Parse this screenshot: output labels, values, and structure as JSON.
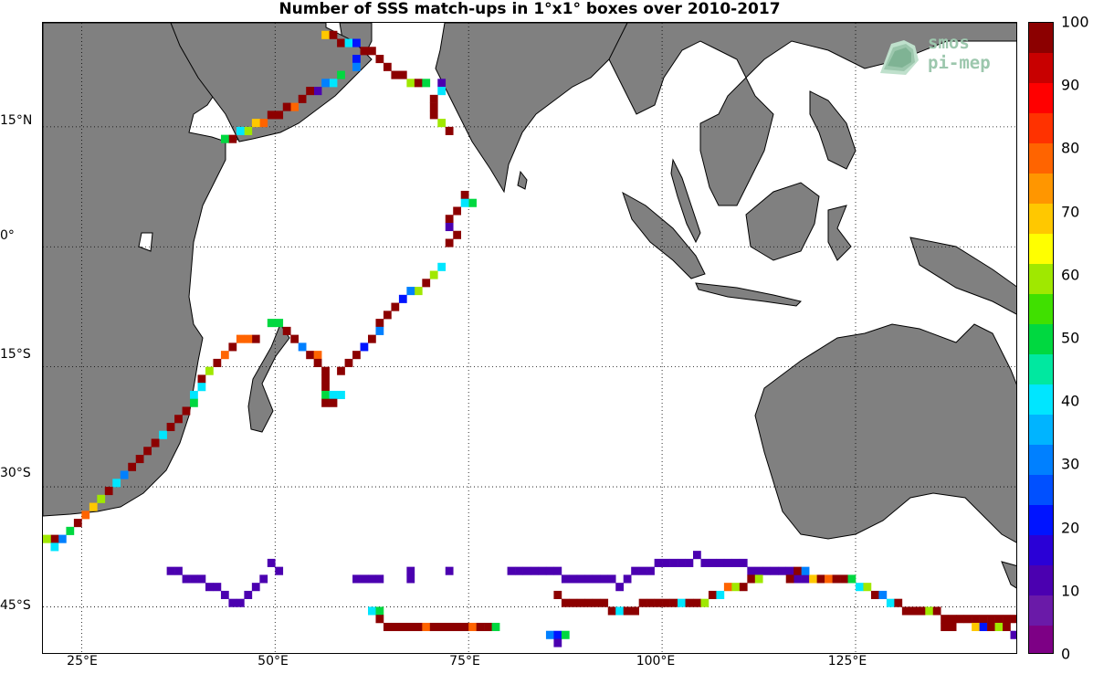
{
  "title": "Number of SSS match-ups in 1°x1° boxes over 2010-2017",
  "lat_labels": [
    "15°N",
    "0°",
    "15°S",
    "30°S",
    "45°S"
  ],
  "lon_labels": [
    "25°E",
    "50°E",
    "75°E",
    "100°E",
    "125°E"
  ],
  "colorbar": {
    "ticks": [
      "0",
      "10",
      "20",
      "30",
      "40",
      "50",
      "60",
      "70",
      "80",
      "90",
      "100"
    ],
    "colors": [
      "#7d0085",
      "#6a1aa8",
      "#4b00b0",
      "#2a00d6",
      "#0014ff",
      "#0050ff",
      "#0080ff",
      "#00b4ff",
      "#00e6ff",
      "#00e8a0",
      "#00d840",
      "#40e000",
      "#a0e800",
      "#ffff00",
      "#ffc800",
      "#ff9600",
      "#ff6400",
      "#ff3200",
      "#ff0000",
      "#c80000",
      "#8c0000"
    ]
  },
  "logo": {
    "line1": "smos",
    "line2": "pi-mep",
    "icon": "smos-pimep-logo-icon"
  },
  "chart_data": {
    "type": "map-gridded",
    "variable": "Number of SSS match-ups in 1°x1° boxes",
    "period": "2010-2017",
    "lon_range": [
      20,
      146
    ],
    "lat_range": [
      -51,
      28
    ],
    "land_color": "#808080",
    "colorbar_range": [
      0,
      100
    ],
    "cells": [
      [
        56,
        26,
        70
      ],
      [
        57,
        26,
        100
      ],
      [
        58,
        25,
        100
      ],
      [
        59,
        25,
        40
      ],
      [
        60,
        25,
        20
      ],
      [
        61,
        24,
        100
      ],
      [
        62,
        24,
        100
      ],
      [
        63,
        23,
        100
      ],
      [
        60,
        23,
        20
      ],
      [
        60,
        22,
        30
      ],
      [
        58,
        21,
        50
      ],
      [
        57,
        20,
        40
      ],
      [
        56,
        20,
        30
      ],
      [
        55,
        19,
        10
      ],
      [
        54,
        19,
        100
      ],
      [
        53,
        18,
        100
      ],
      [
        52,
        17,
        80
      ],
      [
        51,
        17,
        100
      ],
      [
        50,
        16,
        100
      ],
      [
        49,
        16,
        100
      ],
      [
        48,
        15,
        80
      ],
      [
        47,
        15,
        70
      ],
      [
        46,
        14,
        60
      ],
      [
        45,
        14,
        40
      ],
      [
        44,
        13,
        100
      ],
      [
        43,
        13,
        50
      ],
      [
        64,
        22,
        100
      ],
      [
        65,
        21,
        100
      ],
      [
        66,
        21,
        100
      ],
      [
        67,
        20,
        60
      ],
      [
        68,
        20,
        100
      ],
      [
        69,
        20,
        50
      ],
      [
        71,
        20,
        10
      ],
      [
        71,
        19,
        40
      ],
      [
        70,
        18,
        100
      ],
      [
        70,
        17,
        100
      ],
      [
        70,
        16,
        100
      ],
      [
        71,
        15,
        60
      ],
      [
        72,
        14,
        100
      ],
      [
        74,
        6,
        100
      ],
      [
        75,
        5,
        50
      ],
      [
        74,
        5,
        40
      ],
      [
        73,
        4,
        100
      ],
      [
        72,
        3,
        100
      ],
      [
        72,
        2,
        10
      ],
      [
        73,
        1,
        100
      ],
      [
        72,
        0,
        100
      ],
      [
        71,
        -3,
        40
      ],
      [
        70,
        -4,
        60
      ],
      [
        69,
        -5,
        100
      ],
      [
        68,
        -6,
        60
      ],
      [
        67,
        -6,
        30
      ],
      [
        66,
        -7,
        20
      ],
      [
        65,
        -8,
        100
      ],
      [
        64,
        -9,
        100
      ],
      [
        63,
        -10,
        100
      ],
      [
        63,
        -11,
        30
      ],
      [
        62,
        -12,
        100
      ],
      [
        61,
        -13,
        20
      ],
      [
        60,
        -14,
        100
      ],
      [
        59,
        -15,
        100
      ],
      [
        58,
        -16,
        100
      ],
      [
        49,
        -10,
        50
      ],
      [
        50,
        -10,
        50
      ],
      [
        51,
        -11,
        100
      ],
      [
        52,
        -12,
        100
      ],
      [
        53,
        -13,
        30
      ],
      [
        54,
        -14,
        100
      ],
      [
        55,
        -14,
        80
      ],
      [
        55,
        -15,
        100
      ],
      [
        56,
        -16,
        100
      ],
      [
        56,
        -17,
        100
      ],
      [
        56,
        -18,
        100
      ],
      [
        56,
        -19,
        50
      ],
      [
        57,
        -19,
        40
      ],
      [
        58,
        -19,
        40
      ],
      [
        56,
        -20,
        100
      ],
      [
        57,
        -20,
        100
      ],
      [
        47,
        -12,
        100
      ],
      [
        46,
        -12,
        80
      ],
      [
        45,
        -12,
        80
      ],
      [
        44,
        -13,
        100
      ],
      [
        43,
        -14,
        80
      ],
      [
        42,
        -15,
        100
      ],
      [
        41,
        -16,
        60
      ],
      [
        40,
        -17,
        100
      ],
      [
        40,
        -18,
        40
      ],
      [
        39,
        -19,
        40
      ],
      [
        39,
        -20,
        50
      ],
      [
        38,
        -21,
        100
      ],
      [
        37,
        -22,
        100
      ],
      [
        36,
        -23,
        100
      ],
      [
        35,
        -24,
        40
      ],
      [
        34,
        -25,
        100
      ],
      [
        33,
        -26,
        100
      ],
      [
        32,
        -27,
        100
      ],
      [
        31,
        -28,
        100
      ],
      [
        30,
        -29,
        30
      ],
      [
        29,
        -30,
        40
      ],
      [
        28,
        -31,
        100
      ],
      [
        27,
        -32,
        60
      ],
      [
        26,
        -33,
        70
      ],
      [
        25,
        -34,
        80
      ],
      [
        24,
        -35,
        100
      ],
      [
        23,
        -36,
        50
      ],
      [
        22,
        -37,
        30
      ],
      [
        21,
        -37,
        100
      ],
      [
        20,
        -37,
        60
      ],
      [
        21,
        -38,
        40
      ],
      [
        49,
        -40,
        10
      ],
      [
        50,
        -41,
        10
      ],
      [
        48,
        -42,
        10
      ],
      [
        47,
        -43,
        10
      ],
      [
        46,
        -44,
        10
      ],
      [
        45,
        -45,
        10
      ],
      [
        44,
        -45,
        10
      ],
      [
        43,
        -44,
        10
      ],
      [
        42,
        -43,
        10
      ],
      [
        41,
        -43,
        10
      ],
      [
        40,
        -42,
        10
      ],
      [
        39,
        -42,
        10
      ],
      [
        38,
        -42,
        10
      ],
      [
        37,
        -41,
        10
      ],
      [
        36,
        -41,
        10
      ],
      [
        60,
        -42,
        10
      ],
      [
        61,
        -42,
        10
      ],
      [
        62,
        -42,
        10
      ],
      [
        63,
        -42,
        10
      ],
      [
        67,
        -41,
        10
      ],
      [
        67,
        -42,
        10
      ],
      [
        72,
        -41,
        10
      ],
      [
        80,
        -41,
        10
      ],
      [
        81,
        -41,
        10
      ],
      [
        82,
        -41,
        10
      ],
      [
        83,
        -41,
        10
      ],
      [
        84,
        -41,
        10
      ],
      [
        85,
        -41,
        10
      ],
      [
        86,
        -41,
        10
      ],
      [
        87,
        -42,
        10
      ],
      [
        88,
        -42,
        10
      ],
      [
        89,
        -42,
        10
      ],
      [
        90,
        -42,
        10
      ],
      [
        91,
        -42,
        10
      ],
      [
        92,
        -42,
        10
      ],
      [
        93,
        -42,
        10
      ],
      [
        94,
        -43,
        10
      ],
      [
        95,
        -42,
        10
      ],
      [
        96,
        -41,
        10
      ],
      [
        97,
        -41,
        10
      ],
      [
        98,
        -41,
        10
      ],
      [
        99,
        -40,
        10
      ],
      [
        100,
        -40,
        10
      ],
      [
        101,
        -40,
        10
      ],
      [
        102,
        -40,
        10
      ],
      [
        103,
        -40,
        10
      ],
      [
        104,
        -39,
        10
      ],
      [
        105,
        -40,
        10
      ],
      [
        106,
        -40,
        10
      ],
      [
        107,
        -40,
        10
      ],
      [
        108,
        -40,
        10
      ],
      [
        109,
        -40,
        10
      ],
      [
        110,
        -40,
        10
      ],
      [
        111,
        -41,
        10
      ],
      [
        112,
        -41,
        10
      ],
      [
        113,
        -41,
        10
      ],
      [
        114,
        -41,
        10
      ],
      [
        115,
        -41,
        10
      ],
      [
        116,
        -41,
        10
      ],
      [
        117,
        -42,
        10
      ],
      [
        118,
        -42,
        10
      ],
      [
        116,
        -42,
        100
      ],
      [
        117,
        -41,
        100
      ],
      [
        118,
        -41,
        30
      ],
      [
        119,
        -42,
        70
      ],
      [
        120,
        -42,
        100
      ],
      [
        121,
        -42,
        80
      ],
      [
        122,
        -42,
        100
      ],
      [
        123,
        -42,
        100
      ],
      [
        124,
        -42,
        50
      ],
      [
        125,
        -43,
        40
      ],
      [
        126,
        -43,
        60
      ],
      [
        127,
        -44,
        100
      ],
      [
        128,
        -44,
        30
      ],
      [
        129,
        -45,
        40
      ],
      [
        130,
        -45,
        100
      ],
      [
        131,
        -46,
        100
      ],
      [
        132,
        -46,
        100
      ],
      [
        133,
        -46,
        100
      ],
      [
        134,
        -46,
        60
      ],
      [
        135,
        -46,
        100
      ],
      [
        136,
        -47,
        100
      ],
      [
        137,
        -47,
        100
      ],
      [
        138,
        -47,
        100
      ],
      [
        139,
        -47,
        100
      ],
      [
        140,
        -47,
        100
      ],
      [
        141,
        -47,
        100
      ],
      [
        142,
        -47,
        100
      ],
      [
        143,
        -47,
        100
      ],
      [
        144,
        -47,
        100
      ],
      [
        145,
        -47,
        100
      ],
      [
        140,
        -48,
        70
      ],
      [
        141,
        -48,
        20
      ],
      [
        142,
        -48,
        100
      ],
      [
        143,
        -48,
        60
      ],
      [
        144,
        -48,
        100
      ],
      [
        145,
        -49,
        10
      ],
      [
        146,
        -49,
        100
      ],
      [
        136,
        -48,
        100
      ],
      [
        137,
        -48,
        100
      ],
      [
        86,
        -44,
        100
      ],
      [
        87,
        -45,
        100
      ],
      [
        88,
        -45,
        100
      ],
      [
        89,
        -45,
        100
      ],
      [
        90,
        -45,
        100
      ],
      [
        91,
        -45,
        100
      ],
      [
        92,
        -45,
        100
      ],
      [
        93,
        -46,
        100
      ],
      [
        94,
        -46,
        40
      ],
      [
        95,
        -46,
        100
      ],
      [
        96,
        -46,
        100
      ],
      [
        97,
        -45,
        100
      ],
      [
        98,
        -45,
        100
      ],
      [
        99,
        -45,
        100
      ],
      [
        100,
        -45,
        100
      ],
      [
        101,
        -45,
        100
      ],
      [
        102,
        -45,
        40
      ],
      [
        103,
        -45,
        100
      ],
      [
        104,
        -45,
        100
      ],
      [
        105,
        -45,
        60
      ],
      [
        106,
        -44,
        100
      ],
      [
        107,
        -44,
        40
      ],
      [
        108,
        -43,
        80
      ],
      [
        109,
        -43,
        60
      ],
      [
        110,
        -43,
        100
      ],
      [
        111,
        -42,
        100
      ],
      [
        112,
        -42,
        60
      ],
      [
        62,
        -46,
        40
      ],
      [
        63,
        -46,
        50
      ],
      [
        63,
        -47,
        100
      ],
      [
        64,
        -48,
        100
      ],
      [
        65,
        -48,
        100
      ],
      [
        66,
        -48,
        100
      ],
      [
        67,
        -48,
        100
      ],
      [
        68,
        -48,
        100
      ],
      [
        69,
        -48,
        80
      ],
      [
        70,
        -48,
        100
      ],
      [
        71,
        -48,
        100
      ],
      [
        72,
        -48,
        100
      ],
      [
        73,
        -48,
        100
      ],
      [
        74,
        -48,
        100
      ],
      [
        75,
        -48,
        80
      ],
      [
        76,
        -48,
        100
      ],
      [
        77,
        -48,
        100
      ],
      [
        78,
        -48,
        50
      ],
      [
        85,
        -49,
        30
      ],
      [
        86,
        -49,
        20
      ],
      [
        87,
        -49,
        50
      ],
      [
        86,
        -50,
        10
      ]
    ]
  }
}
